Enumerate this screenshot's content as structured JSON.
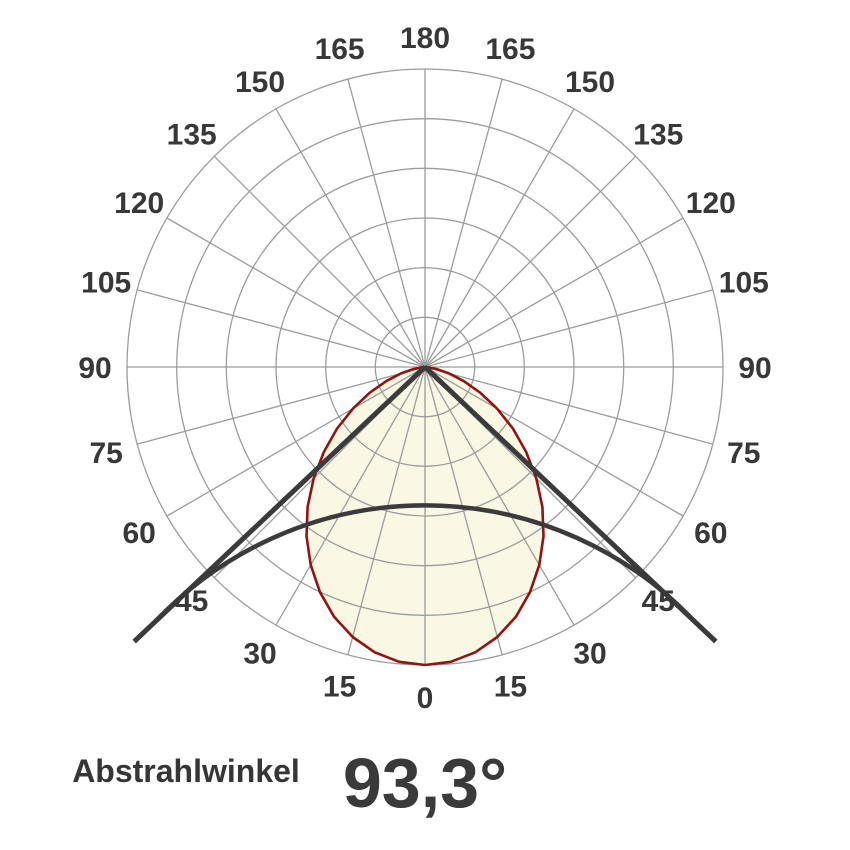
{
  "chart_data": {
    "type": "polar",
    "subtype": "luminous-intensity-distribution",
    "title": "",
    "angle_unit": "deg",
    "angle_zero_position": "bottom",
    "grid": {
      "rings": 6,
      "spoke_step_deg": 15,
      "grid_on": true
    },
    "axis_tick_values": [
      0,
      15,
      30,
      45,
      60,
      75,
      90,
      105,
      120,
      135,
      150,
      165,
      180
    ],
    "axis_tick_labels": [
      "0",
      "15",
      "30",
      "45",
      "60",
      "75",
      "90",
      "105",
      "120",
      "135",
      "150",
      "165",
      "180"
    ],
    "tick_labels_both_sides": true,
    "series": [
      {
        "name": "intensity-lobe",
        "symmetric": true,
        "angles_deg": [
          0,
          5,
          10,
          15,
          20,
          25,
          30,
          35,
          40,
          45,
          50,
          55,
          60,
          65,
          70,
          75,
          80,
          85,
          90
        ],
        "intensity_rel": [
          1.0,
          0.993,
          0.972,
          0.938,
          0.892,
          0.834,
          0.767,
          0.693,
          0.613,
          0.528,
          0.443,
          0.36,
          0.279,
          0.205,
          0.139,
          0.083,
          0.04,
          0.011,
          0.0
        ]
      }
    ],
    "beam": {
      "angle_deg": 93.3,
      "half_angle_deg": 46.65,
      "ray_length_norm": 1.342,
      "arc_radius_norm": 1.245
    },
    "colors": {
      "lobe_fill": "#faf8e4",
      "lobe_stroke": "#8e1512",
      "grid": "#9c9c9c",
      "beam": "#3b3b3b",
      "tick_label": "#383838",
      "background": "#ffffff"
    }
  },
  "footer": {
    "label": "Abstrahlwinkel",
    "value": "93,3°"
  }
}
